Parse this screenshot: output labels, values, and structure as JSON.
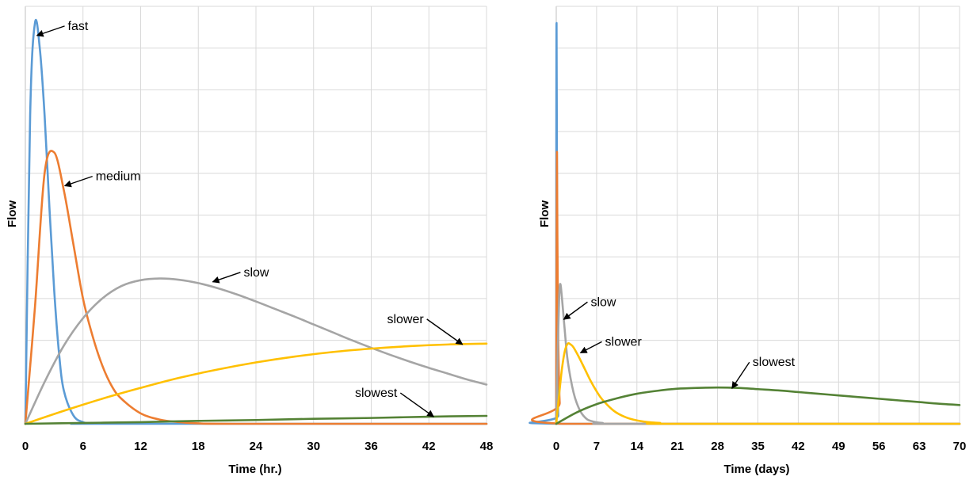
{
  "colors": {
    "fast": "#5b9bd5",
    "medium": "#ed7d31",
    "slow": "#a5a5a5",
    "slower": "#ffc000",
    "slowest": "#548235"
  },
  "chart_data": [
    {
      "type": "line",
      "title": "",
      "xlabel": "Time (hr.)",
      "ylabel": "Flow",
      "xlim": [
        0,
        48
      ],
      "x_ticks": [
        "0",
        "6",
        "12",
        "18",
        "24",
        "30",
        "36",
        "42",
        "48"
      ],
      "ylim": [
        0,
        1
      ],
      "grid": true,
      "legend": "none",
      "series": [
        {
          "name": "fast",
          "color_key": "fast",
          "x": [
            0,
            0.5,
            1,
            1.5,
            2,
            2.5,
            3,
            3.5,
            4,
            5,
            6,
            7,
            8,
            48
          ],
          "y": [
            0,
            0.74,
            0.96,
            0.9,
            0.74,
            0.52,
            0.32,
            0.17,
            0.08,
            0.02,
            0.004,
            0,
            0,
            0
          ]
        },
        {
          "name": "medium",
          "color_key": "medium",
          "x": [
            0,
            1,
            2,
            3,
            4,
            5,
            6,
            7,
            8,
            9,
            10,
            12,
            14,
            16,
            18,
            22,
            48
          ],
          "y": [
            0,
            0.28,
            0.6,
            0.65,
            0.56,
            0.43,
            0.3,
            0.21,
            0.14,
            0.09,
            0.06,
            0.025,
            0.01,
            0.004,
            0.001,
            0,
            0
          ]
        },
        {
          "name": "slow",
          "color_key": "slow",
          "x": [
            0,
            2,
            4,
            6,
            8,
            10,
            12,
            14,
            16,
            18,
            20,
            22,
            24,
            26,
            28,
            30,
            32,
            34,
            36,
            38,
            40,
            42,
            44,
            46,
            48
          ],
          "y": [
            0,
            0.1,
            0.187,
            0.253,
            0.3,
            0.33,
            0.344,
            0.348,
            0.345,
            0.337,
            0.325,
            0.31,
            0.293,
            0.275,
            0.257,
            0.238,
            0.219,
            0.2,
            0.182,
            0.165,
            0.149,
            0.134,
            0.12,
            0.106,
            0.094
          ]
        },
        {
          "name": "slower",
          "color_key": "slower",
          "x": [
            0,
            4,
            8,
            12,
            16,
            20,
            24,
            28,
            32,
            36,
            40,
            44,
            48
          ],
          "y": [
            0,
            0.031,
            0.06,
            0.086,
            0.11,
            0.13,
            0.147,
            0.161,
            0.172,
            0.18,
            0.186,
            0.19,
            0.192
          ]
        },
        {
          "name": "slowest",
          "color_key": "slowest",
          "x": [
            0,
            6,
            12,
            18,
            24,
            30,
            36,
            42,
            48
          ],
          "y": [
            0,
            0.002,
            0.004,
            0.007,
            0.009,
            0.012,
            0.014,
            0.017,
            0.019
          ]
        }
      ],
      "annotations": [
        {
          "text": "fast",
          "series": "fast",
          "point": [
            1.2,
            0.93
          ]
        },
        {
          "text": "medium",
          "series": "medium",
          "point": [
            4.1,
            0.57
          ]
        },
        {
          "text": "slow",
          "series": "slow",
          "point": [
            19.5,
            0.34
          ]
        },
        {
          "text": "slower",
          "series": "slower",
          "point": [
            45.5,
            0.19
          ]
        },
        {
          "text": "slowest",
          "series": "slowest",
          "point": [
            42.5,
            0.017
          ]
        }
      ]
    },
    {
      "type": "line",
      "title": "",
      "xlabel": "Time (days)",
      "ylabel": "Flow",
      "xlim": [
        0,
        70
      ],
      "x_ticks": [
        "0",
        "7",
        "14",
        "21",
        "28",
        "35",
        "42",
        "49",
        "56",
        "63",
        "70"
      ],
      "ylim": [
        0,
        1
      ],
      "grid": true,
      "legend": "none",
      "series": [
        {
          "name": "fast",
          "color_key": "fast",
          "x": [
            0,
            0.01,
            0.05,
            0.12,
            0.2,
            0.35,
            0.6,
            70
          ],
          "y": [
            0,
            0.6,
            0.96,
            0.6,
            0.2,
            0.02,
            0,
            0
          ]
        },
        {
          "name": "medium",
          "color_key": "medium",
          "x": [
            0,
            0.05,
            0.12,
            0.2,
            0.35,
            0.6,
            1,
            70
          ],
          "y": [
            0,
            0.35,
            0.65,
            0.45,
            0.2,
            0.05,
            0,
            0
          ]
        },
        {
          "name": "slow",
          "color_key": "slow",
          "x": [
            0,
            0.25,
            0.5,
            0.7,
            1,
            1.5,
            2,
            3,
            4,
            5,
            6,
            8,
            12,
            70
          ],
          "y": [
            0,
            0.17,
            0.3,
            0.335,
            0.3,
            0.22,
            0.15,
            0.075,
            0.035,
            0.015,
            0.007,
            0.002,
            0,
            0
          ]
        },
        {
          "name": "slower",
          "color_key": "slower",
          "x": [
            0,
            0.5,
            1,
            1.5,
            2,
            2.5,
            3,
            4,
            5,
            6,
            7,
            8,
            10,
            12,
            14,
            16,
            18,
            20,
            70
          ],
          "y": [
            0,
            0.07,
            0.133,
            0.175,
            0.192,
            0.19,
            0.183,
            0.158,
            0.13,
            0.102,
            0.078,
            0.058,
            0.031,
            0.016,
            0.008,
            0.004,
            0.002,
            0,
            0
          ]
        },
        {
          "name": "slowest",
          "color_key": "slowest",
          "x": [
            0,
            3.5,
            7,
            10.5,
            14,
            17.5,
            21,
            24.5,
            28,
            31.5,
            35,
            38.5,
            42,
            45.5,
            49,
            52.5,
            56,
            59.5,
            63,
            66.5,
            70
          ],
          "y": [
            0,
            0.027,
            0.047,
            0.061,
            0.072,
            0.079,
            0.084,
            0.086,
            0.087,
            0.086,
            0.083,
            0.08,
            0.076,
            0.072,
            0.068,
            0.064,
            0.06,
            0.056,
            0.052,
            0.048,
            0.045
          ]
        }
      ],
      "annotations": [
        {
          "text": "slow",
          "series": "slow",
          "point": [
            1.3,
            0.25
          ]
        },
        {
          "text": "slower",
          "series": "slower",
          "point": [
            4.2,
            0.17
          ]
        },
        {
          "text": "slowest",
          "series": "slowest",
          "point": [
            30.5,
            0.085
          ]
        }
      ]
    }
  ]
}
